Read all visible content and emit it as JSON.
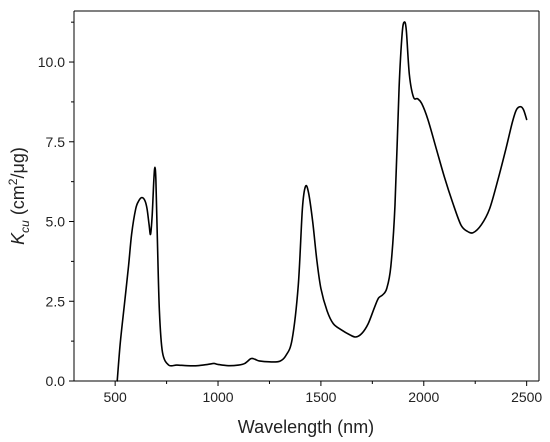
{
  "chart_data": {
    "type": "line",
    "xlabel": "Wavelength (nm)",
    "ylabel": {
      "symbol": "K",
      "subscript": "cu",
      "unit_before_sup": " (cm",
      "superscript": "2",
      "unit_after_sup": "/μg)"
    },
    "xlim": [
      300,
      2560
    ],
    "ylim": [
      0,
      11.6
    ],
    "x_ticks": [
      500,
      1000,
      1500,
      2000,
      2500
    ],
    "y_ticks": [
      0.0,
      2.5,
      5.0,
      7.5,
      10.0
    ],
    "x_tick_labels": [
      "500",
      "1000",
      "1500",
      "2000",
      "2500"
    ],
    "y_tick_labels": [
      "0.0",
      "2.5",
      "5.0",
      "7.5",
      "10.0"
    ],
    "grid": false,
    "legend": "none",
    "series": [
      {
        "color": "#000000",
        "x": [
          510,
          525,
          545,
          565,
          580,
          600,
          615,
          630,
          645,
          655,
          665,
          672,
          680,
          688,
          693,
          698,
          705,
          715,
          730,
          760,
          800,
          850,
          900,
          950,
          980,
          1000,
          1050,
          1100,
          1130,
          1160,
          1180,
          1200,
          1250,
          1300,
          1330,
          1360,
          1390,
          1410,
          1425,
          1440,
          1460,
          1480,
          1500,
          1530,
          1560,
          1600,
          1640,
          1670,
          1700,
          1730,
          1760,
          1780,
          1800,
          1820,
          1840,
          1860,
          1880,
          1895,
          1905,
          1915,
          1930,
          1950,
          1970,
          1990,
          2020,
          2060,
          2100,
          2140,
          2180,
          2210,
          2240,
          2280,
          2320,
          2360,
          2400,
          2430,
          2450,
          2470,
          2485,
          2500
        ],
        "y": [
          0.0,
          1.2,
          2.4,
          3.6,
          4.6,
          5.4,
          5.65,
          5.75,
          5.65,
          5.4,
          4.9,
          4.6,
          5.2,
          6.3,
          6.7,
          6.3,
          4.5,
          2.2,
          0.9,
          0.5,
          0.5,
          0.48,
          0.48,
          0.52,
          0.55,
          0.52,
          0.48,
          0.5,
          0.55,
          0.7,
          0.68,
          0.63,
          0.6,
          0.62,
          0.8,
          1.3,
          3.0,
          5.4,
          6.1,
          5.9,
          5.0,
          3.8,
          2.9,
          2.2,
          1.8,
          1.6,
          1.45,
          1.38,
          1.5,
          1.8,
          2.3,
          2.6,
          2.7,
          2.9,
          3.6,
          5.5,
          9.2,
          10.9,
          11.25,
          11.0,
          9.6,
          8.9,
          8.85,
          8.7,
          8.2,
          7.3,
          6.4,
          5.6,
          4.9,
          4.7,
          4.65,
          4.9,
          5.4,
          6.3,
          7.3,
          8.1,
          8.5,
          8.6,
          8.5,
          8.2
        ]
      }
    ]
  }
}
